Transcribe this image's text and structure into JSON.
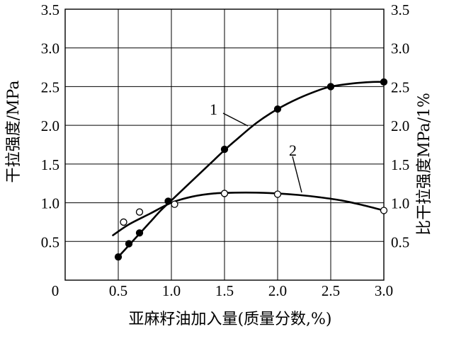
{
  "chart_data": {
    "type": "line",
    "title": "",
    "xlabel": "亚麻籽油加入量(质量分数,%)",
    "ylabel_left": "干拉强度/MPa",
    "ylabel_right": "比干拉强度MPa/1%",
    "xlim": [
      0,
      3.0
    ],
    "ylim": [
      0,
      3.5
    ],
    "x_ticks": [
      "0",
      "0.5",
      "1.0",
      "1.5",
      "2.0",
      "2.5",
      "3.0"
    ],
    "y_ticks_left": [
      "0.5",
      "1.0",
      "1.5",
      "2.0",
      "2.5",
      "3.0",
      "3.5"
    ],
    "y_ticks_right": [
      "0.5",
      "1.0",
      "1.5",
      "2.0",
      "2.5",
      "3.0",
      "3.5"
    ],
    "grid": true,
    "series": [
      {
        "name": "1",
        "marker": "filled-circle",
        "points": [
          [
            0.5,
            0.3
          ],
          [
            0.6,
            0.47
          ],
          [
            0.7,
            0.61
          ],
          [
            0.97,
            1.02
          ],
          [
            1.5,
            1.69
          ],
          [
            2.0,
            2.21
          ],
          [
            2.5,
            2.5
          ],
          [
            3.0,
            2.56
          ]
        ],
        "curve": [
          [
            0.5,
            0.3
          ],
          [
            0.6,
            0.45
          ],
          [
            0.7,
            0.6
          ],
          [
            0.8,
            0.75
          ],
          [
            0.9,
            0.9
          ],
          [
            1.0,
            1.03
          ],
          [
            1.2,
            1.29
          ],
          [
            1.4,
            1.55
          ],
          [
            1.5,
            1.68
          ],
          [
            1.6,
            1.8
          ],
          [
            1.8,
            2.03
          ],
          [
            2.0,
            2.21
          ],
          [
            2.2,
            2.35
          ],
          [
            2.4,
            2.46
          ],
          [
            2.5,
            2.5
          ],
          [
            2.7,
            2.54
          ],
          [
            2.9,
            2.56
          ],
          [
            3.0,
            2.56
          ]
        ]
      },
      {
        "name": "2",
        "marker": "open-circle",
        "points": [
          [
            0.55,
            0.75
          ],
          [
            0.7,
            0.88
          ],
          [
            1.03,
            0.98
          ],
          [
            1.5,
            1.12
          ],
          [
            2.0,
            1.11
          ],
          [
            3.0,
            0.9
          ]
        ],
        "curve": [
          [
            0.45,
            0.58
          ],
          [
            0.6,
            0.72
          ],
          [
            0.8,
            0.86
          ],
          [
            1.0,
            1.0
          ],
          [
            1.2,
            1.08
          ],
          [
            1.4,
            1.12
          ],
          [
            1.6,
            1.13
          ],
          [
            1.8,
            1.13
          ],
          [
            2.0,
            1.12
          ],
          [
            2.2,
            1.1
          ],
          [
            2.4,
            1.07
          ],
          [
            2.6,
            1.03
          ],
          [
            2.8,
            0.97
          ],
          [
            3.0,
            0.9
          ]
        ]
      }
    ]
  },
  "labels": {
    "curve1": "1",
    "curve2": "2"
  }
}
